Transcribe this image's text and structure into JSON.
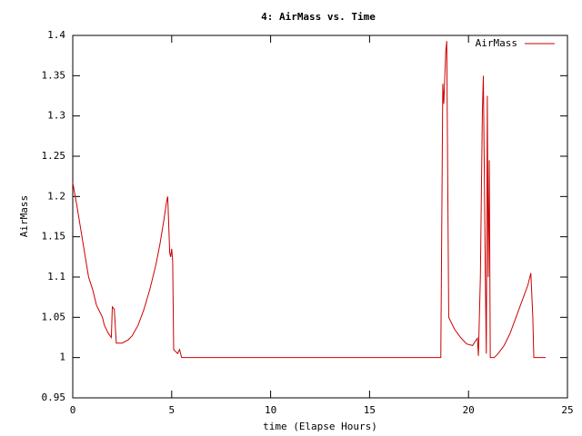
{
  "chart_data": {
    "type": "line",
    "title": "4: AirMass vs. Time",
    "xlabel": "time (Elapse Hours)",
    "ylabel": "AirMass",
    "x": [
      0,
      0.2,
      0.4,
      0.6,
      0.8,
      1.0,
      1.2,
      1.4,
      1.5,
      1.6,
      1.8,
      1.95,
      2.0,
      2.1,
      2.2,
      2.5,
      2.8,
      3.0,
      3.3,
      3.6,
      3.9,
      4.2,
      4.4,
      4.6,
      4.75,
      4.8,
      4.9,
      4.95,
      5.0,
      5.05,
      5.1,
      5.3,
      5.4,
      5.5,
      18.6,
      18.7,
      18.75,
      18.85,
      18.9,
      19.0,
      19.3,
      19.6,
      19.9,
      20.2,
      20.45,
      20.5,
      20.6,
      20.7,
      20.75,
      20.85,
      20.9,
      20.95,
      21.0,
      21.05,
      21.1,
      21.3,
      21.5,
      21.8,
      22.1,
      22.4,
      22.7,
      23.0,
      23.15,
      23.25,
      23.3,
      23.9
    ],
    "series": [
      {
        "name": "AirMass",
        "color": "#cc0000",
        "values": [
          1.217,
          1.19,
          1.16,
          1.13,
          1.1,
          1.085,
          1.065,
          1.055,
          1.05,
          1.04,
          1.03,
          1.025,
          1.063,
          1.06,
          1.018,
          1.018,
          1.022,
          1.027,
          1.04,
          1.06,
          1.085,
          1.115,
          1.14,
          1.17,
          1.195,
          1.2,
          1.13,
          1.125,
          1.135,
          1.12,
          1.01,
          1.005,
          1.01,
          1.0,
          1.0,
          1.34,
          1.315,
          1.38,
          1.393,
          1.05,
          1.035,
          1.025,
          1.017,
          1.015,
          1.024,
          1.002,
          1.1,
          1.305,
          1.35,
          1.1,
          1.005,
          1.325,
          1.1,
          1.245,
          1.0,
          1.0,
          1.005,
          1.015,
          1.03,
          1.05,
          1.07,
          1.09,
          1.105,
          1.05,
          1.0,
          1.0
        ]
      }
    ],
    "xlim": [
      0,
      25
    ],
    "xticks": [
      0,
      5,
      10,
      15,
      20,
      25
    ],
    "ylim": [
      0.95,
      1.4
    ],
    "yticks": [
      0.95,
      1,
      1.05,
      1.1,
      1.15,
      1.2,
      1.25,
      1.3,
      1.35,
      1.4
    ],
    "legend": "top-right"
  }
}
